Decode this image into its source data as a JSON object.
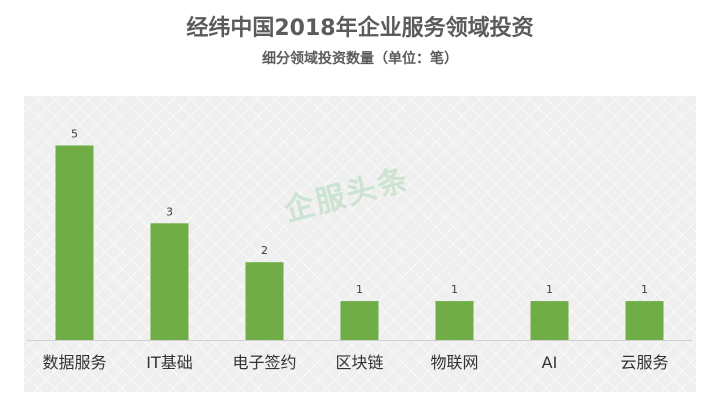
{
  "header": {
    "title": "经纬中国2018年企业服务领域投资",
    "subtitle": "细分领域投资数量（单位：笔）"
  },
  "watermark": "企服头条",
  "colors": {
    "bar": "#70ad47",
    "text": "#404040",
    "background": "#efefef"
  },
  "chart_data": {
    "type": "bar",
    "title": "经纬中国2018年企业服务领域投资",
    "subtitle": "细分领域投资数量（单位：笔）",
    "categories": [
      "数据服务",
      "IT基础",
      "电子签约",
      "区块链",
      "物联网",
      "AI",
      "云服务"
    ],
    "values": [
      5,
      3,
      2,
      1,
      1,
      1,
      1
    ],
    "ylim": [
      0,
      5.5
    ],
    "grid": false,
    "legend": "none",
    "data_labels": true
  }
}
